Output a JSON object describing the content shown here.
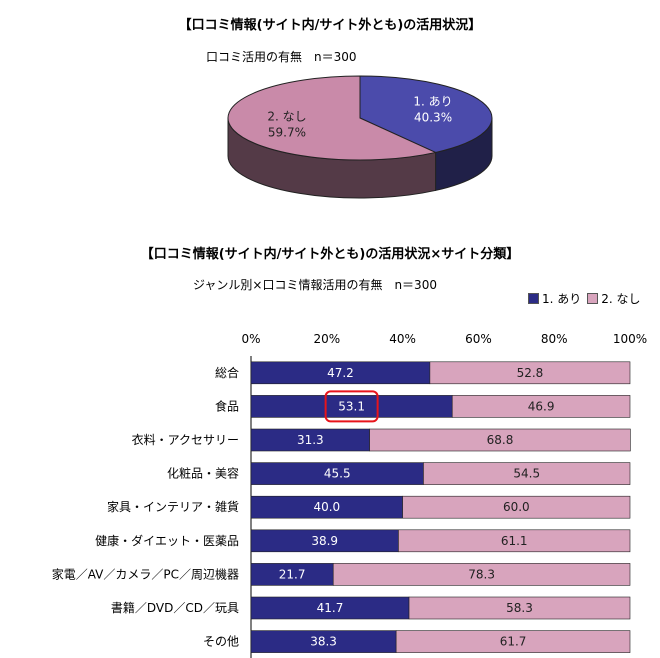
{
  "chart_data": [
    {
      "type": "pie",
      "title": "【口コミ情報(サイト内/サイト外とも)の活用状況】",
      "subtitle": "口コミ活用の有無　n＝300",
      "slices": [
        {
          "name": "1. あり",
          "value": 40.3,
          "label": "40.3%",
          "color": "#4b4bab"
        },
        {
          "name": "2. なし",
          "value": 59.7,
          "label": "59.7%",
          "color": "#c98aa9"
        }
      ]
    },
    {
      "type": "bar",
      "orientation": "horizontal",
      "stacked": "percent",
      "title": "【口コミ情報(サイト内/サイト外とも)の活用状況×サイト分類】",
      "subtitle": "ジャンル別×口コミ情報活用の有無　n＝300",
      "legend_position": "top-right",
      "xlim": [
        0,
        100
      ],
      "x_ticks": [
        "0%",
        "20%",
        "40%",
        "60%",
        "80%",
        "100%"
      ],
      "categories": [
        "総合",
        "食品",
        "衣料・アクセサリー",
        "化粧品・美容",
        "家具・インテリア・雑貨",
        "健康・ダイエット・医薬品",
        "家電／AV／カメラ／PC／周辺機器",
        "書籍／DVD／CD／玩具",
        "その他"
      ],
      "series": [
        {
          "name": "1. あり",
          "color": "#2b2b85",
          "values": [
            47.2,
            53.1,
            31.3,
            45.5,
            40.0,
            38.9,
            21.7,
            41.7,
            38.3
          ],
          "labels": [
            "47.2",
            "53.1",
            "31.3",
            "45.5",
            "40.0",
            "38.9",
            "21.7",
            "41.7",
            "38.3"
          ]
        },
        {
          "name": "2. なし",
          "color": "#d8a4bd",
          "values": [
            52.8,
            46.9,
            68.8,
            54.5,
            60.0,
            61.1,
            78.3,
            58.3,
            61.7
          ],
          "labels": [
            "52.8",
            "46.9",
            "68.8",
            "54.5",
            "60.0",
            "61.1",
            "78.3",
            "58.3",
            "61.7"
          ]
        }
      ],
      "highlight": {
        "category": "食品",
        "series": "1. あり",
        "color": "#e8141b"
      }
    }
  ]
}
